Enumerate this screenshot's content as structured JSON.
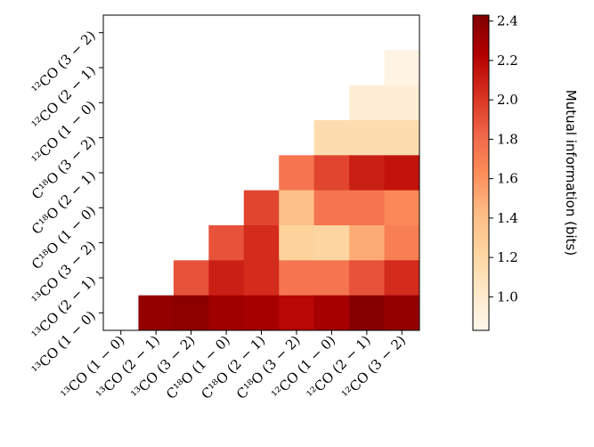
{
  "chart_data": {
    "type": "heatmap",
    "rows": [
      "¹²CO (3 − 2)",
      "¹²CO (2 − 1)",
      "¹²CO (1 − 0)",
      "C¹⁸O (3 − 2)",
      "C¹⁸O (2 − 1)",
      "C¹⁸O (1 − 0)",
      "¹³CO (3 − 2)",
      "¹³CO (2 − 1)",
      "¹³CO (1 − 0)"
    ],
    "columns": [
      "¹³CO (1 − 0)",
      "¹³CO (2 − 1)",
      "¹³CO (3 − 2)",
      "C¹⁸O (1 − 0)",
      "C¹⁸O (2 − 1)",
      "C¹⁸O (3 − 2)",
      "¹²CO (1 − 0)",
      "¹²CO (2 − 1)",
      "¹²CO (3 − 2)"
    ],
    "values": [
      [
        null,
        null,
        null,
        null,
        null,
        null,
        null,
        null,
        null
      ],
      [
        null,
        null,
        null,
        null,
        null,
        null,
        null,
        null,
        0.88
      ],
      [
        null,
        null,
        null,
        null,
        null,
        null,
        null,
        0.95,
        0.95
      ],
      [
        null,
        null,
        null,
        null,
        null,
        null,
        1.15,
        1.15,
        1.15
      ],
      [
        null,
        null,
        null,
        null,
        null,
        1.75,
        1.95,
        2.1,
        2.15
      ],
      [
        null,
        null,
        null,
        null,
        1.95,
        1.4,
        1.75,
        1.75,
        1.65
      ],
      [
        null,
        null,
        null,
        1.9,
        2.05,
        1.25,
        1.22,
        1.5,
        1.7
      ],
      [
        null,
        null,
        1.9,
        2.1,
        2.05,
        1.75,
        1.75,
        1.9,
        2.05
      ],
      [
        null,
        2.35,
        2.38,
        2.3,
        2.28,
        2.2,
        2.28,
        2.4,
        2.35
      ]
    ],
    "colormap": "OrRd",
    "zlim": [
      0.83,
      2.43
    ],
    "zticks": [
      {
        "value": 1,
        "label": "1.0"
      },
      1.2,
      1.4,
      1.6,
      1.8,
      {
        "value": 2,
        "label": "2.0"
      },
      2.2,
      2.4
    ],
    "colorbar_label": "Mutual information (bits)"
  }
}
